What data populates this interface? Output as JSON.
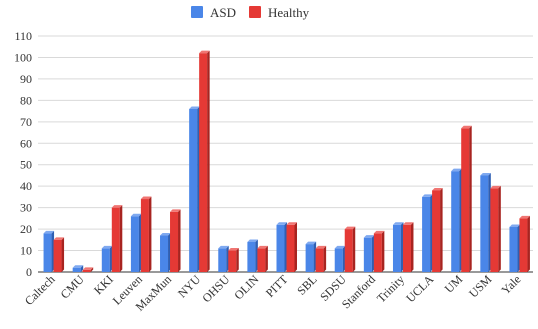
{
  "chart_data": {
    "type": "bar",
    "title": "",
    "xlabel": "",
    "ylabel": "",
    "categories": [
      "Caltech",
      "CMU",
      "KKI",
      "Leuven",
      "MaxMun",
      "NYU",
      "OHSU",
      "OLIN",
      "PITT",
      "SBL",
      "SDSU",
      "Stanford",
      "Trinity",
      "UCLA",
      "UM",
      "USM",
      "Yale"
    ],
    "series": [
      {
        "name": "ASD",
        "color": "#4a86e8",
        "values": [
          18,
          2,
          11,
          26,
          17,
          76,
          11,
          14,
          22,
          13,
          11,
          16,
          22,
          35,
          47,
          45,
          21
        ]
      },
      {
        "name": "Healthy",
        "color": "#e53935",
        "values": [
          15,
          1,
          30,
          34,
          28,
          102,
          10,
          11,
          22,
          11,
          20,
          18,
          22,
          38,
          67,
          39,
          25
        ]
      }
    ],
    "ylim": [
      0,
      110
    ],
    "yticks": [
      0,
      10,
      20,
      30,
      40,
      50,
      60,
      70,
      80,
      90,
      100,
      110
    ],
    "grid": true,
    "legend_position": "top-center"
  }
}
